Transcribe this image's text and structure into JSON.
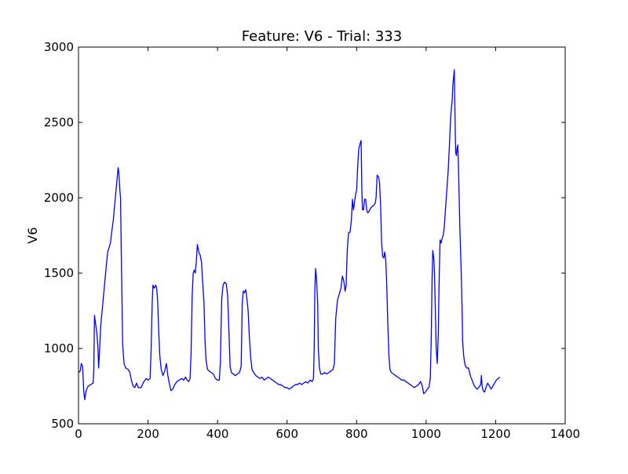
{
  "chart_data": {
    "type": "line",
    "title": "Feature: V6 - Trial: 333",
    "xlabel": "",
    "ylabel": "V6",
    "xlim": [
      0,
      1400
    ],
    "ylim": [
      500,
      3000
    ],
    "xticks": [
      0,
      200,
      400,
      600,
      800,
      1000,
      1200,
      1400
    ],
    "xtick_labels": [
      "0",
      "200",
      "400",
      "600",
      "800",
      "1000",
      "1200",
      "1400"
    ],
    "yticks": [
      500,
      1000,
      1500,
      2000,
      2500,
      3000
    ],
    "ytick_labels": [
      "500",
      "1000",
      "1500",
      "2000",
      "2500",
      "3000"
    ],
    "grid": false,
    "series": [
      {
        "name": "V6",
        "color": "#0000ff",
        "points": [
          [
            0,
            840
          ],
          [
            5,
            850
          ],
          [
            8,
            900
          ],
          [
            12,
            880
          ],
          [
            15,
            720
          ],
          [
            18,
            660
          ],
          [
            22,
            720
          ],
          [
            28,
            750
          ],
          [
            35,
            760
          ],
          [
            42,
            770
          ],
          [
            44,
            850
          ],
          [
            46,
            1220
          ],
          [
            50,
            1150
          ],
          [
            53,
            1100
          ],
          [
            56,
            1000
          ],
          [
            58,
            870
          ],
          [
            61,
            1000
          ],
          [
            64,
            1150
          ],
          [
            68,
            1250
          ],
          [
            72,
            1350
          ],
          [
            76,
            1450
          ],
          [
            80,
            1550
          ],
          [
            84,
            1640
          ],
          [
            88,
            1670
          ],
          [
            92,
            1700
          ],
          [
            96,
            1780
          ],
          [
            100,
            1850
          ],
          [
            104,
            1950
          ],
          [
            108,
            2050
          ],
          [
            112,
            2150
          ],
          [
            114,
            2200
          ],
          [
            116,
            2170
          ],
          [
            119,
            2050
          ],
          [
            121,
            2000
          ],
          [
            123,
            1650
          ],
          [
            125,
            1350
          ],
          [
            127,
            1030
          ],
          [
            131,
            900
          ],
          [
            136,
            870
          ],
          [
            143,
            860
          ],
          [
            148,
            840
          ],
          [
            152,
            790
          ],
          [
            157,
            750
          ],
          [
            162,
            740
          ],
          [
            167,
            770
          ],
          [
            172,
            740
          ],
          [
            180,
            740
          ],
          [
            188,
            780
          ],
          [
            195,
            800
          ],
          [
            200,
            790
          ],
          [
            206,
            800
          ],
          [
            209,
            1000
          ],
          [
            212,
            1300
          ],
          [
            214,
            1420
          ],
          [
            218,
            1400
          ],
          [
            222,
            1420
          ],
          [
            225,
            1400
          ],
          [
            228,
            1300
          ],
          [
            231,
            1100
          ],
          [
            234,
            950
          ],
          [
            238,
            860
          ],
          [
            243,
            820
          ],
          [
            248,
            850
          ],
          [
            253,
            900
          ],
          [
            257,
            820
          ],
          [
            262,
            760
          ],
          [
            266,
            720
          ],
          [
            271,
            730
          ],
          [
            277,
            760
          ],
          [
            283,
            780
          ],
          [
            290,
            790
          ],
          [
            297,
            800
          ],
          [
            303,
            790
          ],
          [
            308,
            810
          ],
          [
            312,
            790
          ],
          [
            317,
            780
          ],
          [
            321,
            800
          ],
          [
            324,
            980
          ],
          [
            327,
            1350
          ],
          [
            330,
            1500
          ],
          [
            333,
            1520
          ],
          [
            336,
            1500
          ],
          [
            339,
            1580
          ],
          [
            342,
            1690
          ],
          [
            346,
            1640
          ],
          [
            350,
            1620
          ],
          [
            354,
            1570
          ],
          [
            357,
            1450
          ],
          [
            361,
            1300
          ],
          [
            364,
            1050
          ],
          [
            367,
            920
          ],
          [
            371,
            860
          ],
          [
            376,
            850
          ],
          [
            382,
            840
          ],
          [
            388,
            830
          ],
          [
            394,
            800
          ],
          [
            400,
            790
          ],
          [
            405,
            790
          ],
          [
            408,
            900
          ],
          [
            412,
            1330
          ],
          [
            416,
            1420
          ],
          [
            420,
            1440
          ],
          [
            425,
            1430
          ],
          [
            429,
            1350
          ],
          [
            433,
            1100
          ],
          [
            436,
            880
          ],
          [
            440,
            840
          ],
          [
            445,
            830
          ],
          [
            451,
            820
          ],
          [
            457,
            830
          ],
          [
            463,
            840
          ],
          [
            468,
            880
          ],
          [
            471,
            1300
          ],
          [
            474,
            1380
          ],
          [
            477,
            1370
          ],
          [
            481,
            1390
          ],
          [
            484,
            1340
          ],
          [
            488,
            1250
          ],
          [
            491,
            1100
          ],
          [
            495,
            950
          ],
          [
            499,
            860
          ],
          [
            504,
            840
          ],
          [
            510,
            820
          ],
          [
            516,
            810
          ],
          [
            522,
            800
          ],
          [
            528,
            810
          ],
          [
            534,
            790
          ],
          [
            540,
            800
          ],
          [
            546,
            810
          ],
          [
            552,
            800
          ],
          [
            558,
            790
          ],
          [
            564,
            780
          ],
          [
            570,
            770
          ],
          [
            576,
            760
          ],
          [
            582,
            760
          ],
          [
            588,
            750
          ],
          [
            594,
            740
          ],
          [
            600,
            740
          ],
          [
            606,
            730
          ],
          [
            612,
            740
          ],
          [
            618,
            750
          ],
          [
            624,
            760
          ],
          [
            630,
            760
          ],
          [
            636,
            770
          ],
          [
            642,
            760
          ],
          [
            648,
            770
          ],
          [
            654,
            780
          ],
          [
            660,
            770
          ],
          [
            666,
            790
          ],
          [
            672,
            780
          ],
          [
            676,
            800
          ],
          [
            678,
            1000
          ],
          [
            680,
            1400
          ],
          [
            682,
            1530
          ],
          [
            685,
            1450
          ],
          [
            688,
            1300
          ],
          [
            690,
            1000
          ],
          [
            693,
            870
          ],
          [
            697,
            830
          ],
          [
            702,
            830
          ],
          [
            708,
            840
          ],
          [
            714,
            830
          ],
          [
            720,
            840
          ],
          [
            726,
            850
          ],
          [
            732,
            860
          ],
          [
            736,
            900
          ],
          [
            740,
            1200
          ],
          [
            745,
            1320
          ],
          [
            750,
            1360
          ],
          [
            755,
            1400
          ],
          [
            759,
            1480
          ],
          [
            763,
            1450
          ],
          [
            767,
            1380
          ],
          [
            770,
            1420
          ],
          [
            773,
            1650
          ],
          [
            777,
            1770
          ],
          [
            781,
            1770
          ],
          [
            785,
            1850
          ],
          [
            788,
            1990
          ],
          [
            791,
            1920
          ],
          [
            794,
            1970
          ],
          [
            797,
            2020
          ],
          [
            800,
            2050
          ],
          [
            803,
            2200
          ],
          [
            806,
            2320
          ],
          [
            810,
            2360
          ],
          [
            813,
            2380
          ],
          [
            815,
            2050
          ],
          [
            817,
            1920
          ],
          [
            820,
            1920
          ],
          [
            823,
            1990
          ],
          [
            826,
            1990
          ],
          [
            829,
            1920
          ],
          [
            832,
            1900
          ],
          [
            836,
            1910
          ],
          [
            840,
            1930
          ],
          [
            844,
            1940
          ],
          [
            849,
            1950
          ],
          [
            853,
            1960
          ],
          [
            856,
            2000
          ],
          [
            859,
            2150
          ],
          [
            863,
            2140
          ],
          [
            866,
            2100
          ],
          [
            869,
            1950
          ],
          [
            872,
            1700
          ],
          [
            875,
            1610
          ],
          [
            878,
            1600
          ],
          [
            881,
            1640
          ],
          [
            884,
            1580
          ],
          [
            887,
            1400
          ],
          [
            890,
            1150
          ],
          [
            893,
            950
          ],
          [
            896,
            860
          ],
          [
            900,
            840
          ],
          [
            906,
            830
          ],
          [
            912,
            820
          ],
          [
            918,
            810
          ],
          [
            924,
            800
          ],
          [
            930,
            790
          ],
          [
            936,
            790
          ],
          [
            942,
            780
          ],
          [
            948,
            770
          ],
          [
            954,
            760
          ],
          [
            960,
            750
          ],
          [
            966,
            740
          ],
          [
            972,
            750
          ],
          [
            978,
            760
          ],
          [
            984,
            780
          ],
          [
            989,
            750
          ],
          [
            993,
            700
          ],
          [
            998,
            710
          ],
          [
            1003,
            730
          ],
          [
            1008,
            740
          ],
          [
            1012,
            800
          ],
          [
            1015,
            1100
          ],
          [
            1017,
            1450
          ],
          [
            1019,
            1650
          ],
          [
            1022,
            1600
          ],
          [
            1024,
            1500
          ],
          [
            1027,
            1200
          ],
          [
            1029,
            1000
          ],
          [
            1032,
            900
          ],
          [
            1035,
            1100
          ],
          [
            1037,
            1400
          ],
          [
            1040,
            1720
          ],
          [
            1043,
            1700
          ],
          [
            1046,
            1730
          ],
          [
            1049,
            1750
          ],
          [
            1052,
            1800
          ],
          [
            1055,
            1900
          ],
          [
            1058,
            2000
          ],
          [
            1061,
            2100
          ],
          [
            1064,
            2200
          ],
          [
            1067,
            2350
          ],
          [
            1069,
            2450
          ],
          [
            1071,
            2550
          ],
          [
            1073,
            2600
          ],
          [
            1075,
            2650
          ],
          [
            1077,
            2750
          ],
          [
            1079,
            2800
          ],
          [
            1081,
            2850
          ],
          [
            1083,
            2550
          ],
          [
            1085,
            2300
          ],
          [
            1087,
            2280
          ],
          [
            1089,
            2330
          ],
          [
            1091,
            2350
          ],
          [
            1093,
            2200
          ],
          [
            1095,
            2000
          ],
          [
            1097,
            1800
          ],
          [
            1099,
            1650
          ],
          [
            1101,
            1500
          ],
          [
            1103,
            1300
          ],
          [
            1105,
            1050
          ],
          [
            1108,
            950
          ],
          [
            1112,
            890
          ],
          [
            1117,
            870
          ],
          [
            1122,
            870
          ],
          [
            1127,
            820
          ],
          [
            1132,
            790
          ],
          [
            1137,
            760
          ],
          [
            1142,
            740
          ],
          [
            1147,
            730
          ],
          [
            1151,
            740
          ],
          [
            1154,
            750
          ],
          [
            1157,
            760
          ],
          [
            1159,
            820
          ],
          [
            1161,
            750
          ],
          [
            1164,
            720
          ],
          [
            1168,
            710
          ],
          [
            1172,
            740
          ],
          [
            1177,
            770
          ],
          [
            1182,
            750
          ],
          [
            1187,
            730
          ],
          [
            1192,
            750
          ],
          [
            1197,
            770
          ],
          [
            1202,
            790
          ],
          [
            1207,
            800
          ],
          [
            1212,
            810
          ]
        ]
      }
    ]
  }
}
